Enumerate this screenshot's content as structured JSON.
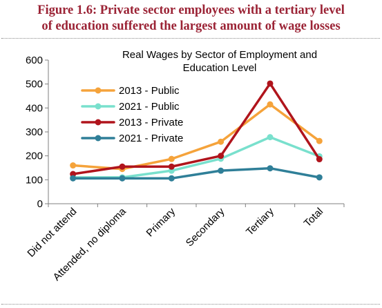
{
  "figure": {
    "title_line1": "Figure 1.6: Private sector employees with a tertiary level",
    "title_line2": "of education suffered the largest amount of wage losses"
  },
  "chart_data": {
    "type": "line",
    "title_line1": "Real Wages by Sector of Employment and",
    "title_line2": "Education Level",
    "categories": [
      "Did not attend",
      "Attended, no diploma",
      "Primary",
      "Secondary",
      "Tertiary",
      "Total"
    ],
    "ylim": [
      0,
      600
    ],
    "yticks": [
      0,
      100,
      200,
      300,
      400,
      500,
      600
    ],
    "grid": false,
    "legend_position": "upper-left",
    "series": [
      {
        "name": "2013 - Public",
        "color": "#f5a33b",
        "values": [
          160,
          145,
          187,
          259,
          415,
          262
        ]
      },
      {
        "name": "2021 - Public",
        "color": "#79e0cd",
        "values": [
          110,
          110,
          138,
          188,
          278,
          198
        ]
      },
      {
        "name": "2013 - Private",
        "color": "#b0141c",
        "values": [
          124,
          155,
          155,
          200,
          502,
          186
        ]
      },
      {
        "name": "2021 - Private",
        "color": "#2f7f98",
        "values": [
          106,
          106,
          106,
          138,
          148,
          110
        ]
      }
    ]
  }
}
